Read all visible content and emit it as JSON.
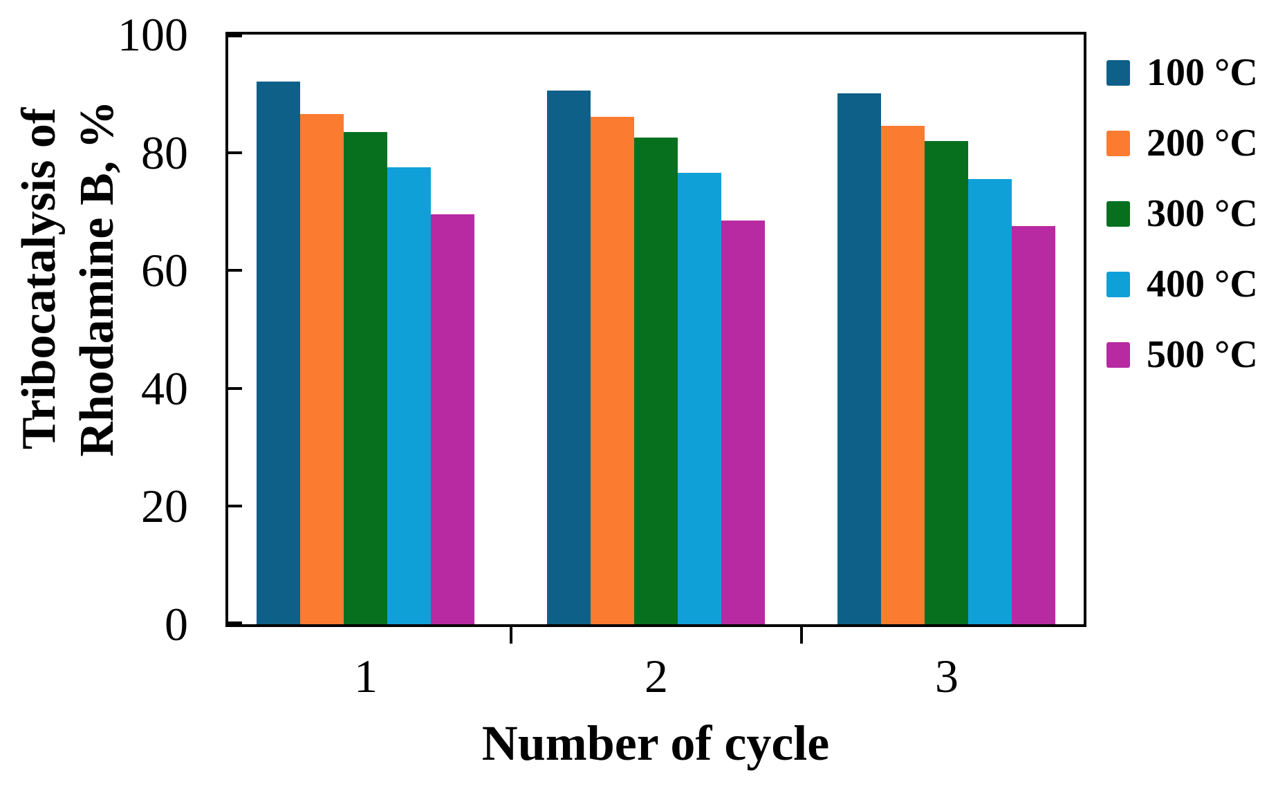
{
  "chart_data": {
    "type": "bar",
    "title": "",
    "xlabel": "Number of cycle",
    "ylabel": "Tribocatalysis of Rhodamine B, %",
    "ylabel_line1": "Tribocatalysis of",
    "ylabel_line2": "Rhodamine B, %",
    "categories": [
      "1",
      "2",
      "3"
    ],
    "series": [
      {
        "name": "100 °C",
        "color": "#0E6089",
        "values": [
          92.0,
          90.5,
          90.0
        ]
      },
      {
        "name": "200 °C",
        "color": "#FB7B30",
        "values": [
          86.5,
          86.0,
          84.5
        ]
      },
      {
        "name": "300 °C",
        "color": "#07701F",
        "values": [
          83.5,
          82.5,
          82.0
        ]
      },
      {
        "name": "400 °C",
        "color": "#0FA0D8",
        "values": [
          77.5,
          76.5,
          75.5
        ]
      },
      {
        "name": "500 °C",
        "color": "#B72AA2",
        "values": [
          69.5,
          68.5,
          67.5
        ]
      }
    ],
    "ylim": [
      0,
      100
    ],
    "yticks": [
      0,
      20,
      40,
      60,
      80,
      100
    ],
    "grid": false,
    "legend_position": "right",
    "frame_color": "#000000",
    "text_color": "#000000",
    "background_color": "#FFFFFF"
  }
}
